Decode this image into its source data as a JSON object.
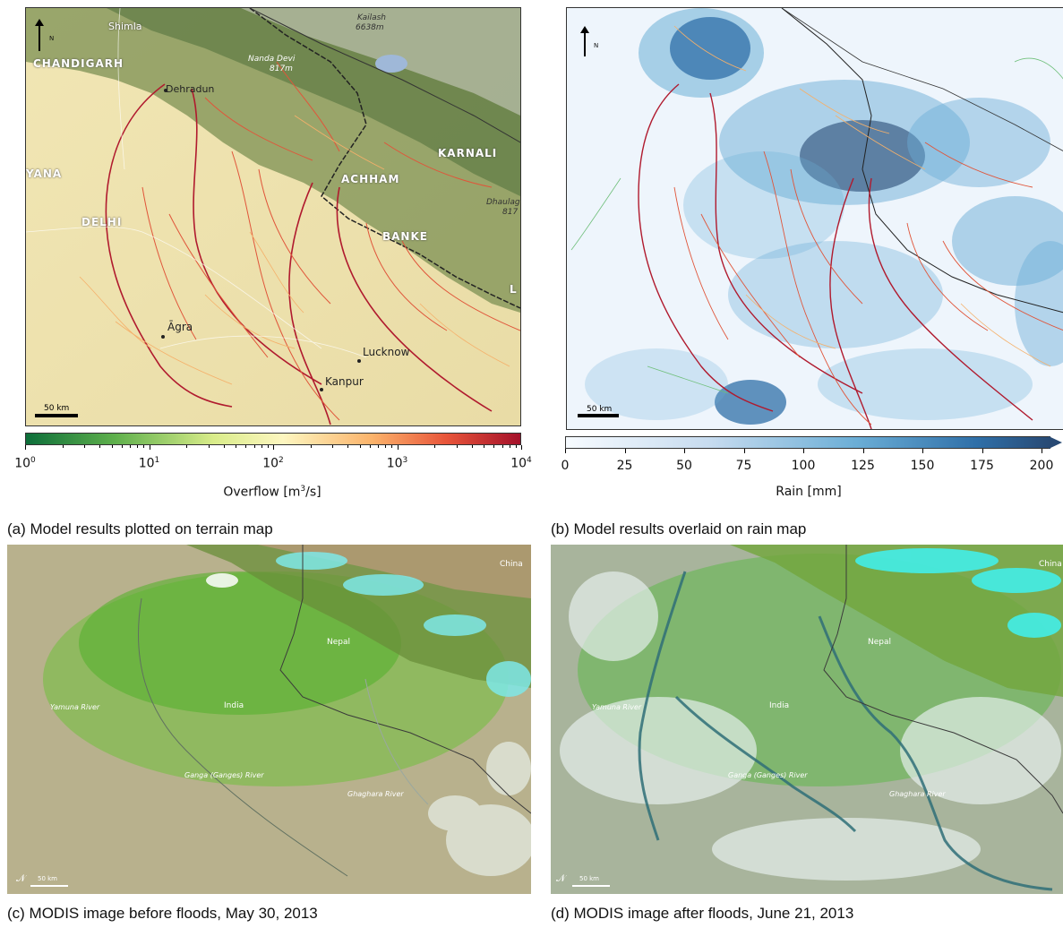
{
  "panel_a": {
    "north_label": "N",
    "scale_label": "50 km",
    "places": {
      "shimla": "Shimla",
      "chandigarh": "CHANDIGARH",
      "dehradun": "Dehradun",
      "yana": "YANA",
      "delhi": "DELHI",
      "agra": "Āgra",
      "lucknow": "Lucknow",
      "kanpur": "Kanpur",
      "achham": "ACHHAM",
      "karnali": "KARNALI",
      "banke": "BANKE",
      "kailash": "Kailash",
      "kailash_elev": "6638m",
      "nanda_devi": "Nanda Devi",
      "nanda_devi_elev": "817m",
      "dhaulagiri": "Dhaulag",
      "dhaulagiri_elev": "817",
      "edge_l": "L"
    },
    "colorbar": {
      "title_prefix": "Overflow [m",
      "title_sup": "3",
      "title_suffix": "/s]",
      "scale": "log",
      "ticks": [
        {
          "base": "10",
          "exp": "0"
        },
        {
          "base": "10",
          "exp": "1"
        },
        {
          "base": "10",
          "exp": "2"
        },
        {
          "base": "10",
          "exp": "3"
        },
        {
          "base": "10",
          "exp": "4"
        }
      ],
      "colors": [
        "#0d6e3a",
        "#5fb04c",
        "#d9ec8a",
        "#fdf6c0",
        "#fbb36b",
        "#e8553a",
        "#a4102a"
      ]
    },
    "caption": "(a) Model results plotted on terrain map"
  },
  "panel_b": {
    "north_label": "N",
    "scale_label": "50 km",
    "colorbar": {
      "title": "Rain [mm]",
      "ticks": [
        "0",
        "25",
        "50",
        "75",
        "100",
        "125",
        "150",
        "175",
        "200"
      ],
      "range": [
        0,
        200
      ],
      "extend": "max",
      "colors": [
        "#f7fbff",
        "#c6dbef",
        "#6baed6",
        "#2f6fa8",
        "#284a74"
      ]
    },
    "caption": "(b) Model results overlaid on rain map"
  },
  "panel_c": {
    "places": {
      "china": "China",
      "nepal": "Nepal",
      "india": "India",
      "yamuna": "Yamuna River",
      "ganga": "Ganga (Ganges) River",
      "ghaghara": "Ghaghara River"
    },
    "scale_label": "50 km",
    "caption": "(c) MODIS image before floods, May 30, 2013"
  },
  "panel_d": {
    "places": {
      "china": "China",
      "nepal": "Nepal",
      "india": "India",
      "yamuna": "Yamuna River",
      "ganga": "Ganga (Ganges) River",
      "ghaghara": "Ghaghara River"
    },
    "scale_label": "50 km",
    "caption": "(d) MODIS image after floods, June 21, 2013"
  }
}
